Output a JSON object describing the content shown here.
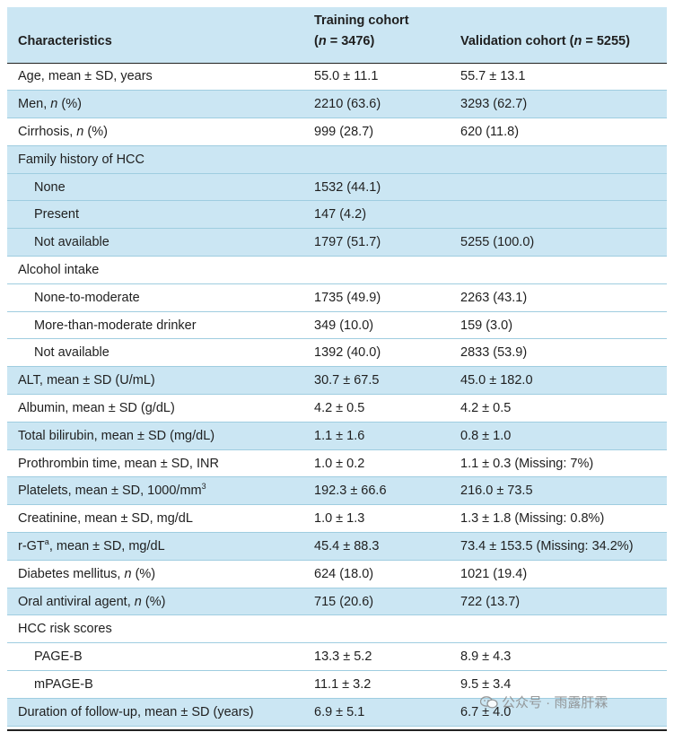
{
  "header": {
    "col1": "Characteristics",
    "col2_line1": "Training cohort",
    "col2_line2_open": "(",
    "col2_n": "n",
    "col2_line2_rest": " = 3476)",
    "col3_text": "Validation cohort (",
    "col3_n": "n",
    "col3_rest": " = 5255)"
  },
  "rows": [
    {
      "label": "Age, mean ± SD, years",
      "training": "55.0 ± 11.1",
      "validation": "55.7 ± 13.1"
    },
    {
      "label_pre": "Men, ",
      "label_it": "n",
      "label_post": " (%)",
      "training": "2210 (63.6)",
      "validation": "3293 (62.7)"
    },
    {
      "label_pre": "Cirrhosis, ",
      "label_it": "n",
      "label_post": " (%)",
      "training": "999 (28.7)",
      "validation": "620 (11.8)"
    },
    {
      "label": "Family history of HCC",
      "training": "",
      "validation": ""
    },
    {
      "label": "None",
      "training": "1532 (44.1)",
      "validation": ""
    },
    {
      "label": "Present",
      "training": "147 (4.2)",
      "validation": ""
    },
    {
      "label": "Not available",
      "training": "1797 (51.7)",
      "validation": "5255 (100.0)"
    },
    {
      "label": "Alcohol intake",
      "training": "",
      "validation": ""
    },
    {
      "label": "None-to-moderate",
      "training": "1735 (49.9)",
      "validation": "2263 (43.1)"
    },
    {
      "label": "More-than-moderate drinker",
      "training": "349 (10.0)",
      "validation": "159 (3.0)"
    },
    {
      "label": "Not available",
      "training": "1392 (40.0)",
      "validation": "2833 (53.9)"
    },
    {
      "label": "ALT, mean ± SD (U/mL)",
      "training": "30.7 ± 67.5",
      "validation": "45.0 ± 182.0"
    },
    {
      "label": "Albumin, mean ± SD (g/dL)",
      "training": "4.2 ± 0.5",
      "validation": "4.2 ± 0.5"
    },
    {
      "label": "Total bilirubin, mean ± SD (mg/dL)",
      "training": "1.1 ± 1.6",
      "validation": "0.8 ± 1.0"
    },
    {
      "label": "Prothrombin time, mean ± SD, INR",
      "training": "1.0 ± 0.2",
      "validation": "1.1 ± 0.3 (Missing: 7%)"
    },
    {
      "label_pre": "Platelets, mean ± SD, 1000/mm",
      "label_sup": "3",
      "training": "192.3 ± 66.6",
      "validation": "216.0 ± 73.5"
    },
    {
      "label": "Creatinine, mean ± SD, mg/dL",
      "training": "1.0 ± 1.3",
      "validation": "1.3 ± 1.8 (Missing: 0.8%)"
    },
    {
      "label_pre": "r-GT",
      "label_sup": "a",
      "label_post": ", mean ± SD, mg/dL",
      "training": "45.4 ± 88.3",
      "validation": "73.4 ± 153.5 (Missing: 34.2%)"
    },
    {
      "label_pre": "Diabetes mellitus, ",
      "label_it": "n",
      "label_post": " (%)",
      "training": "624 (18.0)",
      "validation": "1021 (19.4)"
    },
    {
      "label_pre": "Oral antiviral agent, ",
      "label_it": "n",
      "label_post": " (%)",
      "training": "715 (20.6)",
      "validation": "722 (13.7)"
    },
    {
      "label": "HCC risk scores",
      "training": "",
      "validation": ""
    },
    {
      "label": "PAGE-B",
      "training": "13.3 ± 5.2",
      "validation": "8.9 ± 4.3"
    },
    {
      "label": "mPAGE-B",
      "training": "11.1 ± 3.2",
      "validation": "9.5 ± 3.4"
    },
    {
      "label": "Duration of follow-up, mean ± SD (years)",
      "training": "6.9 ± 5.1",
      "validation": "6.7 ± 4.0"
    }
  ],
  "watermark": "公众号 · 雨露肝霖",
  "colors": {
    "header_bg": "#cbe6f3",
    "shade_bg": "#cbe6f3",
    "rule": "#9fcde0"
  }
}
